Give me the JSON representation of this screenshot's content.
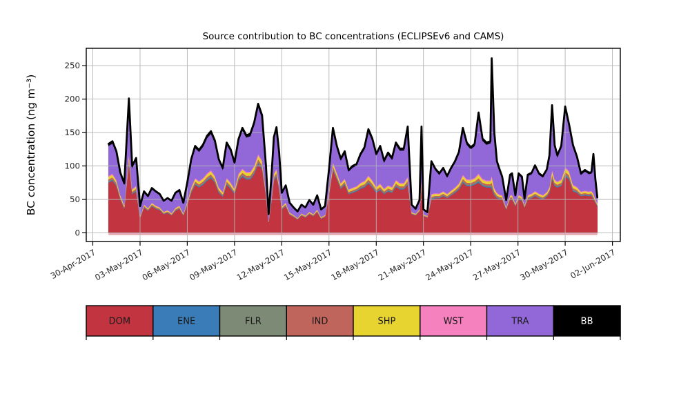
{
  "chart_data": {
    "type": "area",
    "stacked": true,
    "title": "Source contribution to BC concentrations (ECLIPSEv6 and CAMS)",
    "ylabel": "BC concentration (ng m⁻³)",
    "xlabel": "",
    "grid": {
      "show": true,
      "color": "#b3b3b3"
    },
    "series_order": [
      "DOM",
      "ENE",
      "FLR",
      "IND",
      "SHP",
      "WST",
      "TRA",
      "BB"
    ],
    "colors": {
      "DOM": "#c23440",
      "ENE": "#3a7cb8",
      "FLR": "#7d8a76",
      "IND": "#c0655c",
      "SHP": "#e8d430",
      "WST": "#f581be",
      "TRA": "#9268d8",
      "BB": "#000000",
      "total_line": "#000000",
      "baseline_strip": "#dd93a0",
      "axis": "#000000",
      "tick_text": "#262626"
    },
    "legend": [
      {
        "label": "DOM",
        "color": "#c23440",
        "text_color": "#1a1a1a"
      },
      {
        "label": "ENE",
        "color": "#3a7cb8",
        "text_color": "#1a1a1a"
      },
      {
        "label": "FLR",
        "color": "#7d8a76",
        "text_color": "#1a1a1a"
      },
      {
        "label": "IND",
        "color": "#c0655c",
        "text_color": "#1a1a1a"
      },
      {
        "label": "SHP",
        "color": "#e8d430",
        "text_color": "#1a1a1a"
      },
      {
        "label": "WST",
        "color": "#f581be",
        "text_color": "#1a1a1a"
      },
      {
        "label": "TRA",
        "color": "#9268d8",
        "text_color": "#1a1a1a"
      },
      {
        "label": "BB",
        "color": "#000000",
        "text_color": "#ffffff"
      }
    ],
    "x_axis": {
      "hours_origin": "01-May-2017 00:00",
      "xlim_hours": [
        -34,
        780
      ],
      "ticks": [
        {
          "hour": -24,
          "label": "30-Apr-2017"
        },
        {
          "hour": 48,
          "label": "03-May-2017"
        },
        {
          "hour": 120,
          "label": "06-May-2017"
        },
        {
          "hour": 192,
          "label": "09-May-2017"
        },
        {
          "hour": 264,
          "label": "12-May-2017"
        },
        {
          "hour": 336,
          "label": "15-May-2017"
        },
        {
          "hour": 408,
          "label": "18-May-2017"
        },
        {
          "hour": 480,
          "label": "21-May-2017"
        },
        {
          "hour": 552,
          "label": "24-May-2017"
        },
        {
          "hour": 624,
          "label": "27-May-2017"
        },
        {
          "hour": 696,
          "label": "30-May-2017"
        },
        {
          "hour": 768,
          "label": "02-Jun-2017"
        }
      ]
    },
    "y_axis": {
      "ylim": [
        -13,
        276
      ],
      "ticks": [
        0,
        50,
        100,
        150,
        200,
        250
      ]
    },
    "x_hours": [
      0,
      6,
      12,
      18,
      24,
      31,
      36,
      42,
      48,
      54,
      60,
      66,
      72,
      78,
      84,
      90,
      96,
      102,
      108,
      114,
      120,
      126,
      132,
      138,
      144,
      150,
      156,
      162,
      168,
      174,
      180,
      186,
      192,
      198,
      204,
      210,
      216,
      222,
      228,
      234,
      240,
      244,
      248,
      252,
      256,
      260,
      264,
      270,
      276,
      282,
      288,
      294,
      300,
      306,
      312,
      318,
      324,
      330,
      336,
      342,
      348,
      354,
      360,
      366,
      372,
      378,
      384,
      390,
      396,
      402,
      408,
      414,
      420,
      426,
      432,
      438,
      444,
      450,
      456,
      462,
      468,
      474,
      477,
      480,
      486,
      492,
      498,
      504,
      510,
      516,
      522,
      528,
      534,
      540,
      546,
      552,
      558,
      564,
      570,
      576,
      582,
      584,
      588,
      592,
      596,
      600,
      606,
      612,
      615,
      620,
      625,
      630,
      634,
      639,
      645,
      650,
      656,
      662,
      668,
      672,
      676,
      680,
      684,
      690,
      696,
      702,
      708,
      714,
      720,
      726,
      732,
      736,
      739,
      742,
      745
    ],
    "series": {
      "total_bc": [
        133,
        137,
        122,
        90,
        74,
        201,
        100,
        112,
        40,
        62,
        55,
        67,
        62,
        58,
        48,
        52,
        48,
        60,
        64,
        45,
        75,
        110,
        130,
        124,
        132,
        145,
        152,
        138,
        110,
        97,
        135,
        125,
        105,
        140,
        157,
        146,
        148,
        165,
        193,
        176,
        100,
        28,
        80,
        143,
        158,
        120,
        60,
        71,
        45,
        38,
        32,
        42,
        38,
        49,
        42,
        56,
        35,
        40,
        95,
        157,
        130,
        111,
        122,
        94,
        100,
        103,
        118,
        128,
        155,
        141,
        118,
        130,
        108,
        120,
        112,
        135,
        126,
        126,
        159,
        42,
        36,
        49,
        159,
        35,
        31,
        107,
        96,
        89,
        97,
        85,
        97,
        107,
        121,
        157,
        135,
        128,
        133,
        180,
        141,
        135,
        137,
        261,
        150,
        107,
        95,
        84,
        49,
        87,
        89,
        56,
        89,
        84,
        51,
        87,
        90,
        101,
        89,
        85,
        95,
        116,
        191,
        131,
        116,
        130,
        189,
        162,
        131,
        114,
        89,
        94,
        90,
        91,
        118,
        80,
        53
      ],
      "DOM": [
        75,
        78,
        70,
        50,
        36,
        104,
        58,
        62,
        22,
        38,
        33,
        40,
        36,
        34,
        28,
        30,
        26,
        33,
        36,
        26,
        42,
        60,
        72,
        68,
        72,
        78,
        82,
        75,
        60,
        54,
        72,
        66,
        58,
        78,
        84,
        80,
        80,
        88,
        103,
        95,
        55,
        16,
        45,
        78,
        84,
        65,
        35,
        40,
        27,
        24,
        20,
        26,
        23,
        28,
        25,
        31,
        21,
        24,
        56,
        94,
        80,
        66,
        72,
        58,
        60,
        62,
        66,
        68,
        74,
        68,
        60,
        64,
        58,
        62,
        60,
        69,
        65,
        65,
        72,
        28,
        26,
        32,
        70,
        25,
        23,
        50,
        52,
        52,
        55,
        52,
        56,
        60,
        65,
        75,
        70,
        70,
        72,
        75,
        70,
        68,
        68,
        66,
        56,
        52,
        50,
        50,
        35,
        50,
        50,
        40,
        50,
        48,
        38,
        50,
        52,
        55,
        52,
        50,
        54,
        60,
        80,
        70,
        68,
        70,
        84,
        80,
        62,
        60,
        55,
        56,
        55,
        56,
        50,
        45,
        40
      ],
      "minor_fraction_of_total": {
        "ENE": 0.01,
        "FLR": 0.01,
        "IND": 0.018,
        "SHP": 0.028,
        "WST": 0.012,
        "BB": 0.022
      },
      "TRA": "remainder: total − DOM − minor fractions × total"
    }
  }
}
